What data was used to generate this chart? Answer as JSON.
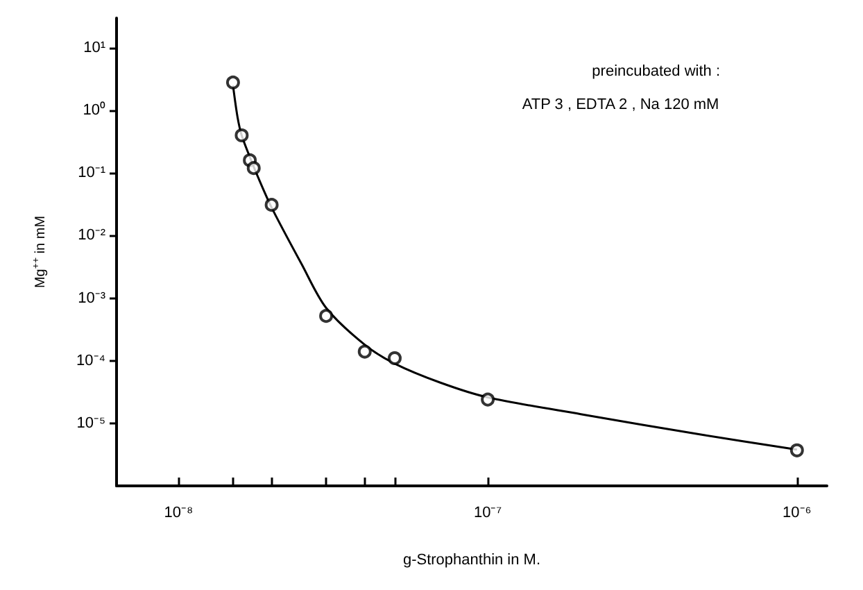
{
  "chart_data": {
    "type": "scatter",
    "xlabel": "g-Strophanthin in M.",
    "ylabel": "Mg$^{++}$ in mM",
    "annotations": [
      "preincubated with :",
      "ATP 3 , EDTA 2 , Na 120 mM"
    ],
    "log": "xy",
    "grid": false,
    "marker": "circle",
    "xlim": [
      6.3e-09,
      1.25e-06
    ],
    "ylim": [
      1e-06,
      30
    ],
    "xticks": [
      {
        "value": 1e-08,
        "label": "10⁻⁸"
      },
      {
        "value": 1.5e-08,
        "label": null
      },
      {
        "value": 2e-08,
        "label": null
      },
      {
        "value": 3e-08,
        "label": null
      },
      {
        "value": 4e-08,
        "label": null
      },
      {
        "value": 5e-08,
        "label": null
      },
      {
        "value": 1e-07,
        "label": "10⁻⁷"
      },
      {
        "value": 1e-06,
        "label": "10⁻⁶"
      }
    ],
    "yticks": [
      {
        "value": 1e-05,
        "label": "10⁻⁵"
      },
      {
        "value": 0.0001,
        "label": "10⁻⁴"
      },
      {
        "value": 0.001,
        "label": "10⁻³"
      },
      {
        "value": 0.01,
        "label": "10⁻²"
      },
      {
        "value": 0.1,
        "label": "10⁻¹"
      },
      {
        "value": 1,
        "label": "10⁰"
      },
      {
        "value": 10,
        "label": "10¹"
      }
    ],
    "x": [
      1.5e-08,
      1.6e-08,
      1.7e-08,
      1.75e-08,
      2e-08,
      3e-08,
      4e-08,
      5e-08,
      1e-07,
      1e-06
    ],
    "series": [
      {
        "color": "#000000",
        "values": [
          2.8,
          0.4,
          0.16,
          0.12,
          0.031,
          0.00052,
          0.00014,
          0.00011,
          2.4e-05,
          3.7e-06
        ]
      },
      {
        "type": "line",
        "color": "#000000",
        "marker": "none",
        "line_style": "solid",
        "x": [
          1.5e-08,
          1.55e-08,
          1.6e-08,
          1.7e-08,
          1.8e-08,
          2e-08,
          2.5e-08,
          3e-08,
          4e-08,
          5e-08,
          7e-08,
          1e-07,
          2e-07,
          5e-07,
          1e-06
        ],
        "values": [
          2.5,
          0.8,
          0.4,
          0.18,
          0.09,
          0.028,
          0.0035,
          0.0007,
          0.00018,
          9e-05,
          4.5e-05,
          2.6e-05,
          1.4e-05,
          6.5e-06,
          3.8e-06
        ]
      }
    ]
  }
}
